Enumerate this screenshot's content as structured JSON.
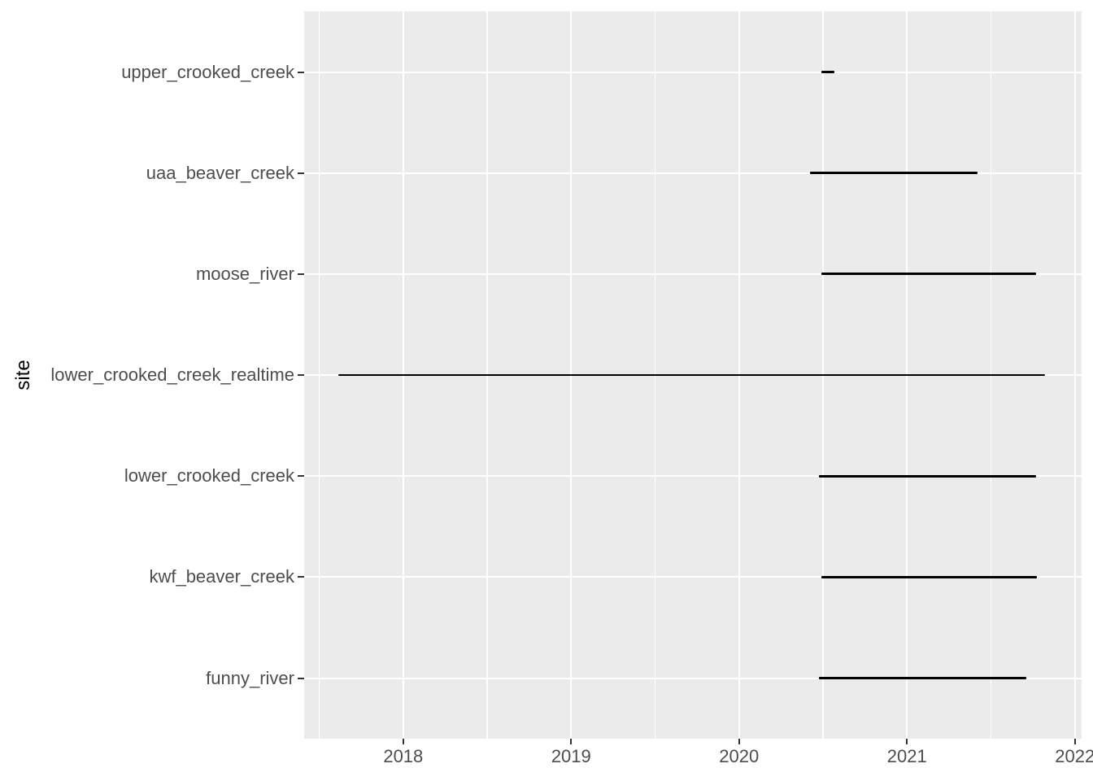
{
  "chart_data": {
    "type": "line",
    "mark": "horizontal_segment",
    "title": "",
    "xlabel": "",
    "ylabel": "site",
    "legend": "none",
    "grid": true,
    "xlim": [
      2017.41,
      2022.04
    ],
    "x_ticks": [
      2018,
      2019,
      2020,
      2021,
      2022
    ],
    "x_tick_labels": [
      "2018",
      "2019",
      "2020",
      "2021",
      "2022"
    ],
    "x_minor_ticks": [
      2017.5,
      2018.5,
      2019.5,
      2020.5,
      2021.5
    ],
    "categories": [
      "upper_crooked_creek",
      "uaa_beaver_creek",
      "moose_river",
      "lower_crooked_creek_realtime",
      "lower_crooked_creek",
      "kwf_beaver_creek",
      "funny_river"
    ],
    "series": [
      {
        "site": "upper_crooked_creek",
        "start": 2020.49,
        "end": 2020.57
      },
      {
        "site": "uaa_beaver_creek",
        "start": 2020.42,
        "end": 2021.42
      },
      {
        "site": "moose_river",
        "start": 2020.49,
        "end": 2021.77
      },
      {
        "site": "lower_crooked_creek_realtime",
        "start": 2017.615,
        "end": 2021.82
      },
      {
        "site": "lower_crooked_creek",
        "start": 2020.475,
        "end": 2021.77
      },
      {
        "site": "kwf_beaver_creek",
        "start": 2020.49,
        "end": 2021.775
      },
      {
        "site": "funny_river",
        "start": 2020.475,
        "end": 2021.71
      }
    ],
    "colors": {
      "panel_background": "#EBEBEB",
      "gridline": "#FFFFFF",
      "segment": "#000000",
      "axis_text": "#4D4D4D",
      "axis_title": "#000000",
      "tick_mark": "#333333",
      "figure_background": "#FFFFFF"
    }
  }
}
